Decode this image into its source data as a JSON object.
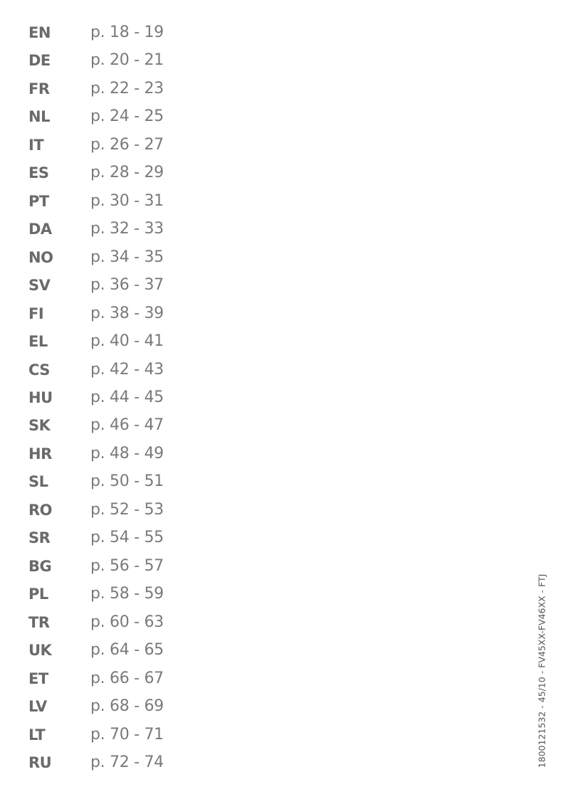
{
  "languages": [
    {
      "code": "EN",
      "pages": "p. 18 - 19"
    },
    {
      "code": "DE",
      "pages": "p. 20 - 21"
    },
    {
      "code": "FR",
      "pages": "p. 22 - 23"
    },
    {
      "code": "NL",
      "pages": "p. 24 - 25"
    },
    {
      "code": "IT",
      "pages": "p. 26 - 27"
    },
    {
      "code": "ES",
      "pages": "p. 28 - 29"
    },
    {
      "code": "PT",
      "pages": "p. 30 - 31"
    },
    {
      "code": "DA",
      "pages": "p. 32 - 33"
    },
    {
      "code": "NO",
      "pages": "p. 34 - 35"
    },
    {
      "code": "SV",
      "pages": "p. 36 - 37"
    },
    {
      "code": "FI",
      "pages": "p. 38 - 39"
    },
    {
      "code": "EL",
      "pages": "p. 40 - 41"
    },
    {
      "code": "CS",
      "pages": "p. 42 - 43"
    },
    {
      "code": "HU",
      "pages": "p. 44 - 45"
    },
    {
      "code": "SK",
      "pages": "p. 46 - 47"
    },
    {
      "code": "HR",
      "pages": "p. 48 - 49"
    },
    {
      "code": "SL",
      "pages": "p. 50 - 51"
    },
    {
      "code": "RO",
      "pages": "p. 52 - 53"
    },
    {
      "code": "SR",
      "pages": "p. 54 - 55"
    },
    {
      "code": "BG",
      "pages": "p. 56 - 57"
    },
    {
      "code": "PL",
      "pages": "p. 58 - 59"
    },
    {
      "code": "TR",
      "pages": "p. 60 - 63"
    },
    {
      "code": "UK",
      "pages": "p. 64 - 65"
    },
    {
      "code": "ET",
      "pages": "p. 66 - 67"
    },
    {
      "code": "LV",
      "pages": "p. 68 - 69"
    },
    {
      "code": "LT",
      "pages": "p. 70 - 71"
    },
    {
      "code": "RU",
      "pages": "p. 72 - 74"
    }
  ],
  "reference_code": "1800121532 - 45/10 - FV45XX-FV46XX - FTJ"
}
